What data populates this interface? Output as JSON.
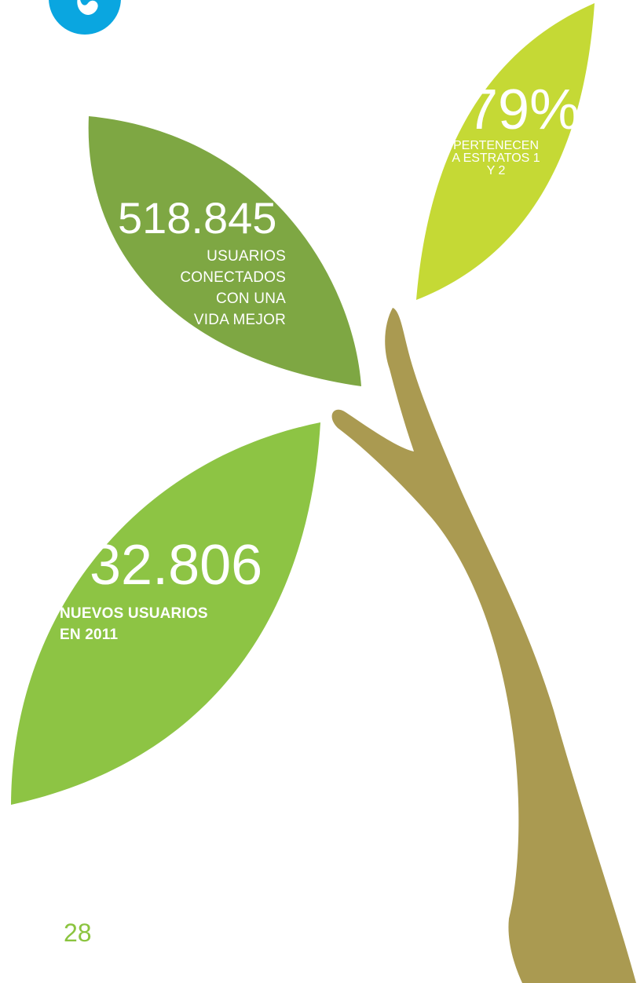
{
  "colors": {
    "leaf_light": "#c5d935",
    "leaf_mid": "#7ea743",
    "leaf_bright": "#8dc444",
    "trunk": "#aa9a51",
    "logo": "#0aa6e0",
    "page_number": "#8bc43f"
  },
  "logo": {
    "icon": "flame-drop-icon"
  },
  "stats": [
    {
      "value": "79%",
      "caption_lines": [
        "PERTENECEN",
        "A ESTRATOS 1",
        "Y 2"
      ]
    },
    {
      "value": "518.845",
      "caption_lines": [
        "USUARIOS",
        "CONECTADOS",
        "CON UNA",
        "VIDA MEJOR"
      ]
    },
    {
      "value": "32.806",
      "caption_lines": [
        "NUEVOS USUARIOS",
        "EN 2011"
      ]
    }
  ],
  "page_number": "28"
}
